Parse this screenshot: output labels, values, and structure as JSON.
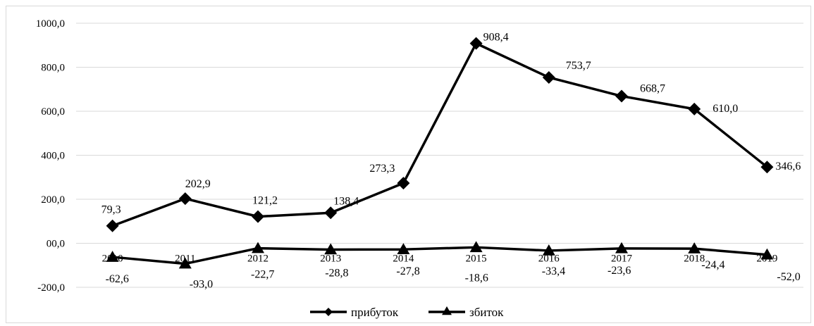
{
  "chart_data": {
    "type": "line",
    "categories": [
      "2010",
      "2011",
      "2012",
      "2013",
      "2014",
      "2015",
      "2016",
      "2017",
      "2018",
      "2019"
    ],
    "series": [
      {
        "name": "прибуток",
        "marker": "diamond",
        "values": [
          79.3,
          202.9,
          121.2,
          138.4,
          273.3,
          908.4,
          753.7,
          668.7,
          610.0,
          346.6
        ],
        "labels": [
          "79,3",
          "202,9",
          "121,2",
          "138,4",
          "273,3",
          "908,4",
          "753,7",
          "668,7",
          "610,0",
          "346,6"
        ]
      },
      {
        "name": "збиток",
        "marker": "triangle",
        "values": [
          -62.6,
          -93.0,
          -22.7,
          -28.8,
          -27.8,
          -18.6,
          -33.4,
          -23.6,
          -24.4,
          -52.0
        ],
        "labels": [
          "-62,6",
          "-93,0",
          "-22,7",
          "-28,8",
          "-27,8",
          "-18,6",
          "-33,4",
          "-23,6",
          "-24,4",
          "-52,0"
        ]
      }
    ],
    "y_ticks": [
      "1000,0",
      "800,0",
      "600,0",
      "400,0",
      "200,0",
      "00,0",
      "-200,0"
    ],
    "y_tick_values": [
      1000,
      800,
      600,
      400,
      200,
      0,
      -200
    ],
    "ylim": [
      -200,
      1000
    ],
    "grid": true,
    "legend_position": "bottom",
    "line_color": "#000000",
    "grid_color": "#d9d9d9"
  }
}
